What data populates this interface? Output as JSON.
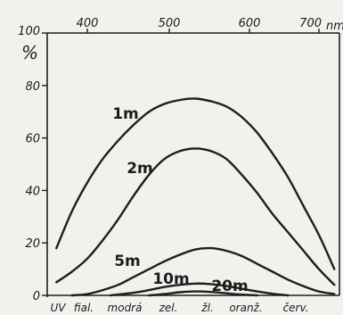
{
  "chart_data": {
    "type": "line",
    "ylabel": "%",
    "ylim": [
      0,
      100
    ],
    "y_ticks": [
      "0",
      "20",
      "40",
      "60",
      "80",
      "100"
    ],
    "top_axis": {
      "ticks": [
        "400",
        "500",
        "600",
        "700"
      ],
      "unit": "nm"
    },
    "xlim": [
      350,
      720
    ],
    "bottom_bands": [
      "UV",
      "fial.",
      "modrá",
      "zel.",
      "žl.",
      "oranž.",
      "červ."
    ],
    "series": [
      {
        "name": "1m",
        "x": [
          360,
          380,
          400,
          420,
          440,
          460,
          480,
          500,
          520,
          540,
          560,
          580,
          600,
          620,
          640,
          660,
          680,
          700,
          720
        ],
        "y": [
          18,
          32,
          43,
          52,
          59,
          65,
          70,
          73,
          74.5,
          75,
          74,
          72,
          68,
          62,
          54,
          45,
          34,
          23,
          10
        ]
      },
      {
        "name": "2m",
        "x": [
          360,
          380,
          400,
          420,
          440,
          460,
          480,
          500,
          520,
          540,
          560,
          580,
          600,
          620,
          640,
          660,
          680,
          700,
          720
        ],
        "y": [
          5,
          9,
          14,
          21,
          29,
          38,
          46,
          52,
          55,
          56,
          55,
          52,
          46,
          39,
          31,
          24,
          17,
          10,
          4
        ]
      },
      {
        "name": "5m",
        "x": [
          380,
          400,
          420,
          440,
          460,
          480,
          500,
          520,
          540,
          560,
          580,
          600,
          620,
          640,
          660,
          680,
          700,
          720
        ],
        "y": [
          0,
          0.5,
          2,
          4,
          7,
          10,
          13,
          15.5,
          17.5,
          18,
          17,
          15,
          12,
          9,
          6,
          3.5,
          1.5,
          0.5
        ]
      },
      {
        "name": "10m",
        "x": [
          430,
          460,
          480,
          500,
          520,
          540,
          560,
          580,
          600,
          620,
          640,
          660
        ],
        "y": [
          0,
          1,
          2,
          3.2,
          4,
          4.5,
          4.3,
          3.6,
          2.5,
          1.5,
          0.6,
          0
        ]
      },
      {
        "name": "20m",
        "x": [
          480,
          500,
          520,
          540,
          560,
          580,
          600,
          620
        ],
        "y": [
          0,
          0.5,
          1.2,
          1.5,
          1.3,
          0.8,
          0.3,
          0
        ]
      }
    ]
  }
}
